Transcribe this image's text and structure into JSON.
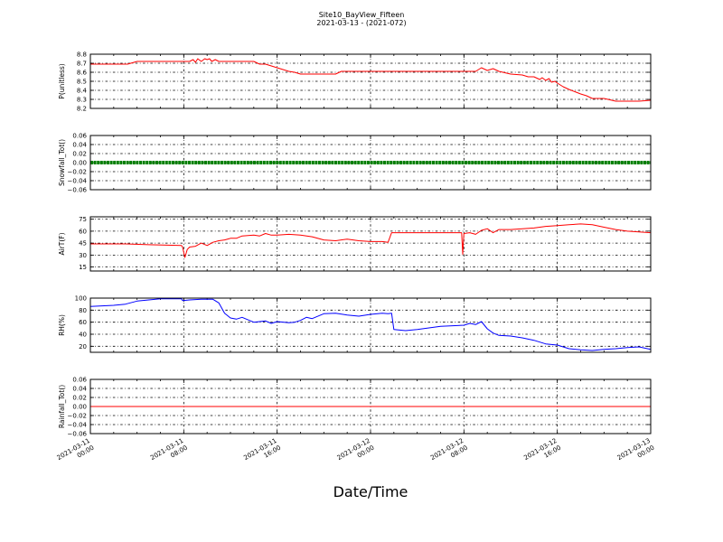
{
  "title_line1": "Site10_BayView_Fifteen",
  "title_line2": "2021-03-13 - (2021-072)",
  "xlabel": "Date/Time",
  "x_ticks": [
    [
      "2021-03-11",
      "00:00"
    ],
    [
      "2021-03-11",
      "08:00"
    ],
    [
      "2021-03-11",
      "16:00"
    ],
    [
      "2021-03-12",
      "00:00"
    ],
    [
      "2021-03-12",
      "08:00"
    ],
    [
      "2021-03-12",
      "16:00"
    ],
    [
      "2021-03-13",
      "00:00"
    ]
  ],
  "x_range_hours": [
    0,
    48
  ],
  "chart_data": [
    {
      "type": "line",
      "ylabel": "P(unitless)",
      "ylim": [
        8.2,
        8.8
      ],
      "yticks": [
        "8.2",
        "8.3",
        "8.4",
        "8.5",
        "8.6",
        "8.7",
        "8.8"
      ],
      "grid": true,
      "series": [
        {
          "color": "#ff0000",
          "x": [
            0,
            2.5,
            3.2,
            4.0,
            6.0,
            8.0,
            8.5,
            8.8,
            9.0,
            9.2,
            9.5,
            9.8,
            10.0,
            10.2,
            10.4,
            10.7,
            11.0,
            11.3,
            11.6,
            12.0,
            13.0,
            14.0,
            14.5,
            15.0,
            16.0,
            17.0,
            17.5,
            18.0,
            21.0,
            21.5,
            23.0,
            24.0,
            27.0,
            30.0,
            32.0,
            33.0,
            33.5,
            34.0,
            34.5,
            35.0,
            36.0,
            37.0,
            37.5,
            38.0,
            38.5,
            38.7,
            39.0,
            39.3,
            39.5,
            39.8,
            40.0,
            40.5,
            41.0,
            42.0,
            42.5,
            43.0,
            44.0,
            45.0,
            46.0,
            47.0,
            48.0
          ],
          "y": [
            8.69,
            8.69,
            8.69,
            8.72,
            8.72,
            8.72,
            8.72,
            8.74,
            8.71,
            8.75,
            8.72,
            8.75,
            8.74,
            8.75,
            8.72,
            8.74,
            8.72,
            8.72,
            8.72,
            8.72,
            8.72,
            8.72,
            8.69,
            8.69,
            8.65,
            8.61,
            8.6,
            8.58,
            8.58,
            8.61,
            8.61,
            8.61,
            8.61,
            8.61,
            8.61,
            8.61,
            8.65,
            8.62,
            8.64,
            8.61,
            8.58,
            8.57,
            8.55,
            8.55,
            8.52,
            8.54,
            8.51,
            8.53,
            8.49,
            8.5,
            8.48,
            8.44,
            8.41,
            8.36,
            8.34,
            8.31,
            8.31,
            8.28,
            8.28,
            8.28,
            8.29
          ]
        }
      ]
    },
    {
      "type": "line",
      "ylabel": "Snowfall_Tot()",
      "ylim": [
        -0.06,
        0.06
      ],
      "yticks": [
        "−0.06",
        "−0.04",
        "−0.02",
        "0.00",
        "0.02",
        "0.04",
        "0.06"
      ],
      "grid": true,
      "series": [
        {
          "color": "#008000",
          "marker": "dot",
          "x": [
            0,
            48
          ],
          "y": [
            0.0,
            0.0
          ]
        }
      ]
    },
    {
      "type": "line",
      "ylabel": "AirT(F)",
      "ylim": [
        10,
        78
      ],
      "yticks": [
        "15",
        "30",
        "45",
        "60",
        "75"
      ],
      "grid": true,
      "series": [
        {
          "color": "#ff0000",
          "x": [
            0,
            3.0,
            5.0,
            7.8,
            7.9,
            8.1,
            8.3,
            8.5,
            9.0,
            9.5,
            10.0,
            10.5,
            11.0,
            11.5,
            12.0,
            12.5,
            13.0,
            14.0,
            14.5,
            15.0,
            15.5,
            16.0,
            17.0,
            18.0,
            19.0,
            20.0,
            21.0,
            22.0,
            23.0,
            24.0,
            25.0,
            25.5,
            25.8,
            26.0,
            28.0,
            30.0,
            31.0,
            31.8,
            31.9,
            32.0,
            32.5,
            33.0,
            33.5,
            34.0,
            34.5,
            35.0,
            36.0,
            37.0,
            38.0,
            39.0,
            40.0,
            41.0,
            42.0,
            43.0,
            44.0,
            45.0,
            46.0,
            47.0,
            48.0
          ],
          "y": [
            44,
            44,
            43,
            42,
            40,
            27,
            37,
            40,
            41,
            45,
            42,
            46,
            48,
            49,
            51,
            51,
            54,
            55,
            54,
            57,
            55,
            55,
            56,
            55,
            53,
            49,
            48,
            50,
            48,
            47,
            47,
            46,
            58,
            58,
            58,
            58,
            58,
            58,
            31,
            57,
            58,
            56,
            61,
            63,
            58,
            62,
            62,
            63,
            64,
            66,
            67,
            68,
            69,
            68,
            65,
            62,
            60,
            59,
            58
          ]
        }
      ]
    },
    {
      "type": "line",
      "ylabel": "RH(%)",
      "ylim": [
        10,
        100
      ],
      "yticks": [
        "20",
        "40",
        "60",
        "80",
        "100"
      ],
      "grid": true,
      "series": [
        {
          "color": "#0000ff",
          "x": [
            0,
            2.0,
            3.0,
            4.0,
            6.0,
            7.0,
            7.8,
            7.9,
            8.5,
            9.5,
            10.5,
            11.0,
            11.5,
            12.0,
            12.5,
            13.0,
            14.0,
            15.0,
            15.5,
            16.0,
            17.0,
            17.5,
            18.0,
            18.5,
            19.0,
            20.0,
            21.0,
            22.0,
            23.0,
            24.0,
            25.0,
            25.5,
            25.8,
            26.0,
            27.0,
            28.0,
            30.0,
            32.0,
            32.5,
            33.0,
            33.5,
            34.0,
            34.5,
            35.0,
            36.0,
            37.0,
            38.0,
            39.0,
            40.0,
            41.0,
            42.0,
            43.0,
            44.0,
            45.0,
            46.0,
            47.0,
            48.0
          ],
          "y": [
            86,
            88,
            90,
            95,
            99,
            99,
            99,
            96,
            97,
            98,
            98,
            92,
            75,
            67,
            65,
            68,
            60,
            62,
            58,
            61,
            59,
            60,
            63,
            68,
            66,
            74,
            75,
            72,
            70,
            73,
            75,
            74,
            75,
            48,
            46,
            48,
            53,
            55,
            58,
            56,
            61,
            49,
            42,
            38,
            37,
            34,
            30,
            24,
            22,
            16,
            14,
            13,
            15,
            16,
            18,
            19,
            15
          ]
        }
      ]
    },
    {
      "type": "line",
      "ylabel": "Rainfall_Tot()",
      "ylim": [
        -0.06,
        0.06
      ],
      "yticks": [
        "−0.06",
        "−0.04",
        "−0.02",
        "0.00",
        "0.02",
        "0.04",
        "0.06"
      ],
      "grid": true,
      "series": [
        {
          "color": "#ff0000",
          "x": [
            0,
            48
          ],
          "y": [
            0.0,
            0.0
          ]
        }
      ]
    }
  ]
}
